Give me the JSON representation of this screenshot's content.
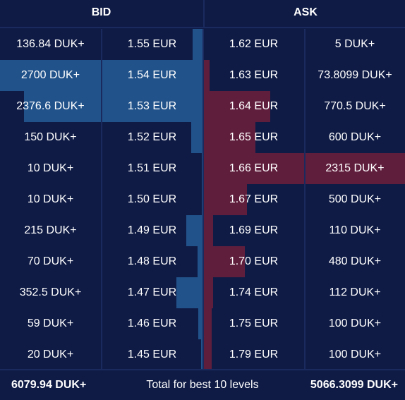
{
  "header": {
    "bid_label": "BID",
    "ask_label": "ASK"
  },
  "colors": {
    "background": "#0f1b45",
    "bid_bar": "#245c96",
    "ask_bar": "#6e1e3c",
    "divider": "#1a2a5e"
  },
  "rows": [
    {
      "bid_qty": "136.84 DUK+",
      "bid_price": "1.55 EUR",
      "ask_price": "1.62 EUR",
      "ask_qty": "5 DUK+",
      "bid_depth": 0.05,
      "ask_depth": 0.0
    },
    {
      "bid_qty": "2700 DUK+",
      "bid_price": "1.54 EUR",
      "ask_price": "1.63 EUR",
      "ask_qty": "73.8099 DUK+",
      "bid_depth": 1.0,
      "ask_depth": 0.032
    },
    {
      "bid_qty": "2376.6 DUK+",
      "bid_price": "1.53 EUR",
      "ask_price": "1.64 EUR",
      "ask_qty": "770.5 DUK+",
      "bid_depth": 0.88,
      "ask_depth": 0.333
    },
    {
      "bid_qty": "150 DUK+",
      "bid_price": "1.52 EUR",
      "ask_price": "1.65 EUR",
      "ask_qty": "600 DUK+",
      "bid_depth": 0.056,
      "ask_depth": 0.26
    },
    {
      "bid_qty": "10 DUK+",
      "bid_price": "1.51 EUR",
      "ask_price": "1.66 EUR",
      "ask_qty": "2315 DUK+",
      "bid_depth": 0.004,
      "ask_depth": 1.0
    },
    {
      "bid_qty": "10 DUK+",
      "bid_price": "1.50 EUR",
      "ask_price": "1.67 EUR",
      "ask_qty": "500 DUK+",
      "bid_depth": 0.004,
      "ask_depth": 0.216
    },
    {
      "bid_qty": "215 DUK+",
      "bid_price": "1.49 EUR",
      "ask_price": "1.69 EUR",
      "ask_qty": "110 DUK+",
      "bid_depth": 0.08,
      "ask_depth": 0.048
    },
    {
      "bid_qty": "70 DUK+",
      "bid_price": "1.48 EUR",
      "ask_price": "1.70 EUR",
      "ask_qty": "480 DUK+",
      "bid_depth": 0.026,
      "ask_depth": 0.207
    },
    {
      "bid_qty": "352.5 DUK+",
      "bid_price": "1.47 EUR",
      "ask_price": "1.74 EUR",
      "ask_qty": "112 DUK+",
      "bid_depth": 0.13,
      "ask_depth": 0.048
    },
    {
      "bid_qty": "59 DUK+",
      "bid_price": "1.46 EUR",
      "ask_price": "1.75 EUR",
      "ask_qty": "100 DUK+",
      "bid_depth": 0.022,
      "ask_depth": 0.043
    },
    {
      "bid_qty": "20 DUK+",
      "bid_price": "1.45 EUR",
      "ask_price": "1.79 EUR",
      "ask_qty": "100 DUK+",
      "bid_depth": 0.007,
      "ask_depth": 0.043
    }
  ],
  "footer": {
    "bid_total": "6079.94 DUK+",
    "label": "Total for best 10 levels",
    "ask_total": "5066.3099 DUK+"
  }
}
